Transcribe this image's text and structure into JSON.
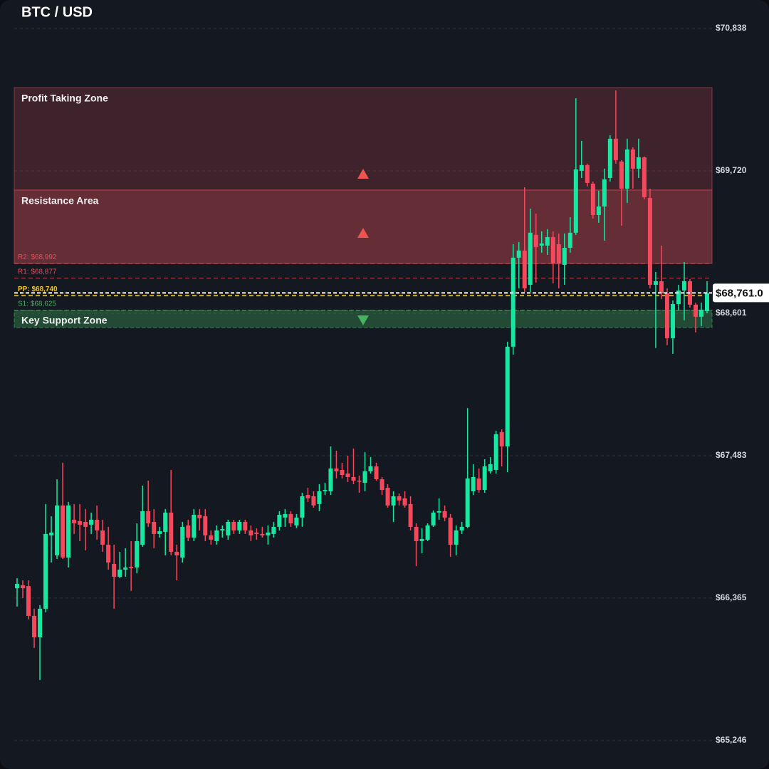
{
  "chart_data": {
    "type": "candlestick",
    "title": "BTC / USD",
    "ylim": [
      65246,
      70838
    ],
    "yticks": [
      {
        "value": 70838,
        "label": "$70,838"
      },
      {
        "value": 69720,
        "label": "$69,720"
      },
      {
        "value": 68601,
        "label": "$68,601"
      },
      {
        "value": 67483,
        "label": "$67,483"
      },
      {
        "value": 66365,
        "label": "$66,365"
      },
      {
        "value": 65246,
        "label": "$65,246"
      }
    ],
    "grid": true,
    "up_color": "#19e6a0",
    "down_color": "#f2495c",
    "zones": [
      {
        "label": "Profit Taking Zone",
        "from": 70374,
        "to": 69569,
        "color": "#b0414c"
      },
      {
        "label": "Resistance Area",
        "from": 69569,
        "to": 68992,
        "color": "#c8464f"
      },
      {
        "label": "Key Support Zone",
        "from": 68625,
        "to": 68489,
        "color": "#3fa85a"
      }
    ],
    "levels": [
      {
        "label": "R2: $68,992",
        "value": 68992,
        "color": "#e0525a"
      },
      {
        "label": "R1: $68,877",
        "value": 68877,
        "color": "#e0525a"
      },
      {
        "label": "PP: $68,740",
        "value": 68740,
        "color": "#f5c518"
      },
      {
        "label": "S1: $68,625",
        "value": 68625,
        "color": "#46b35e"
      }
    ],
    "current_price": {
      "value": 68761,
      "label": "$68,761.0"
    },
    "open": [
      66442,
      66465,
      66459,
      66225,
      66057,
      66281,
      66857,
      66700,
      67092,
      66683,
      66980,
      66969,
      66963,
      66941,
      66980,
      66896,
      66784,
      66633,
      66532,
      66588,
      66610,
      66605,
      66784,
      67047,
      66963,
      66868,
      66885,
      67036,
      66728,
      66683,
      66935,
      66840,
      67019,
      67008,
      66857,
      66812,
      66896,
      66857,
      66963,
      66896,
      66963,
      66896,
      66879,
      66868,
      66857,
      66868,
      66924,
      66997,
      67025,
      66935,
      66997,
      67175,
      67164,
      67103,
      67203,
      67203,
      67382,
      67371,
      67343,
      67315,
      67287,
      67270,
      67360,
      67399,
      67298,
      67231,
      67092,
      67164,
      67148,
      67103,
      66924,
      66812,
      66823,
      66935,
      67036,
      67047,
      66997,
      66784,
      66896,
      66924,
      67203,
      67304,
      67214,
      67360,
      67371,
      67668,
      67556,
      68339,
      69038,
      69094,
      68825,
      69217,
      69133,
      69133,
      69200,
      69144,
      68982,
      69116,
      69234,
      69720,
      69765,
      69619,
      69373,
      69440,
      69664,
      69972,
      69793,
      69580,
      69888,
      69737,
      69826,
      69507,
      68825,
      68853,
      68758,
      68406,
      68674,
      68780,
      68853,
      68669,
      68574,
      68618
    ],
    "high": [
      66521,
      66504,
      66504,
      66281,
      66309,
      67103,
      67008,
      67298,
      67427,
      67120,
      67103,
      67103,
      67064,
      67036,
      67092,
      66980,
      66924,
      66784,
      66728,
      66756,
      66812,
      66952,
      67248,
      67287,
      67064,
      66924,
      67064,
      67371,
      66784,
      66963,
      66980,
      67064,
      67064,
      67064,
      66896,
      66935,
      66935,
      66980,
      66980,
      66980,
      66980,
      66935,
      66913,
      66924,
      66935,
      66963,
      67047,
      67064,
      67047,
      67025,
      67192,
      67231,
      67203,
      67259,
      67270,
      67556,
      67522,
      67427,
      67483,
      67539,
      67326,
      67511,
      67472,
      67427,
      67315,
      67259,
      67203,
      67186,
      67203,
      67164,
      66952,
      66913,
      66952,
      67053,
      67148,
      67092,
      67025,
      66935,
      66963,
      67857,
      67416,
      67382,
      67455,
      67472,
      67679,
      67690,
      68378,
      69144,
      69161,
      69591,
      69423,
      69384,
      69245,
      69262,
      69245,
      69228,
      69228,
      69356,
      70290,
      69955,
      69776,
      69636,
      69563,
      69737,
      70000,
      70352,
      69804,
      69972,
      69905,
      69972,
      69832,
      69580,
      68926,
      69133,
      68797,
      68702,
      68825,
      69004,
      68870,
      68685,
      68685,
      68853
    ],
    "low": [
      66298,
      66365,
      66197,
      65973,
      65721,
      66253,
      66644,
      66672,
      66672,
      66605,
      66868,
      66812,
      66739,
      66868,
      66823,
      66728,
      66588,
      66281,
      66521,
      66532,
      66421,
      66560,
      66767,
      66924,
      66756,
      66840,
      66700,
      66700,
      66504,
      66644,
      66812,
      66812,
      66896,
      66812,
      66784,
      66784,
      66840,
      66823,
      66868,
      66868,
      66868,
      66812,
      66823,
      66840,
      66784,
      66840,
      66896,
      66924,
      66924,
      66913,
      66924,
      67120,
      67075,
      67047,
      67175,
      67175,
      67304,
      67304,
      67276,
      67259,
      67192,
      67203,
      67343,
      67287,
      67175,
      67075,
      66963,
      67092,
      67075,
      66896,
      66616,
      66717,
      66812,
      66924,
      66980,
      66969,
      66689,
      66700,
      66868,
      66913,
      67175,
      67192,
      67192,
      67343,
      67343,
      67399,
      67354,
      68277,
      68797,
      68769,
      68769,
      68842,
      69077,
      69060,
      68836,
      68797,
      68825,
      69077,
      69217,
      69664,
      69597,
      69345,
      69312,
      69172,
      69636,
      69776,
      69289,
      69468,
      69580,
      69664,
      69496,
      68797,
      68329,
      68713,
      68350,
      68283,
      68624,
      68546,
      68646,
      68451,
      68501,
      68601
    ],
    "close": [
      66476,
      66442,
      66225,
      66057,
      66281,
      66868,
      66879,
      67092,
      66683,
      67092,
      66952,
      66941,
      66924,
      66980,
      66896,
      66784,
      66644,
      66532,
      66588,
      66605,
      66599,
      66812,
      67047,
      66952,
      66868,
      66890,
      67036,
      66728,
      66700,
      66924,
      66840,
      67019,
      66991,
      66857,
      66823,
      66896,
      66907,
      66963,
      66896,
      66963,
      66896,
      66857,
      66868,
      66857,
      66879,
      66924,
      67019,
      67025,
      66952,
      66997,
      67164,
      67148,
      67092,
      67203,
      67214,
      67382,
      67360,
      67332,
      67315,
      67287,
      67281,
      67360,
      67399,
      67298,
      67214,
      67092,
      67164,
      67131,
      67092,
      66924,
      66812,
      66829,
      66935,
      67036,
      67047,
      66997,
      66784,
      66896,
      66924,
      67304,
      67315,
      67214,
      67399,
      67416,
      67651,
      67556,
      68339,
      69038,
      69094,
      68797,
      69234,
      69122,
      69150,
      69200,
      68993,
      68993,
      69116,
      69234,
      69731,
      69765,
      69625,
      69373,
      69440,
      69653,
      69972,
      69804,
      69580,
      69888,
      69737,
      69826,
      69513,
      68825,
      68853,
      68758,
      68406,
      68674,
      68780,
      68853,
      68669,
      68574,
      68630,
      68761
    ]
  }
}
